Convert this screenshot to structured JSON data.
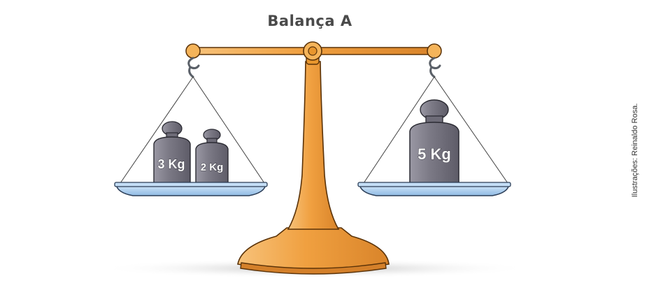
{
  "title": "Balança A",
  "credit": "Ilustrações: Reinaldo Rosa.",
  "left_pan": {
    "weights": [
      {
        "label": "3 Kg"
      },
      {
        "label": "2 Kg"
      }
    ]
  },
  "right_pan": {
    "weights": [
      {
        "label": "5 Kg"
      }
    ]
  },
  "colors": {
    "brass": "#f0a040",
    "brass_dark": "#c8741c",
    "pan": "#aecfee",
    "weight": "#7c7a86"
  }
}
